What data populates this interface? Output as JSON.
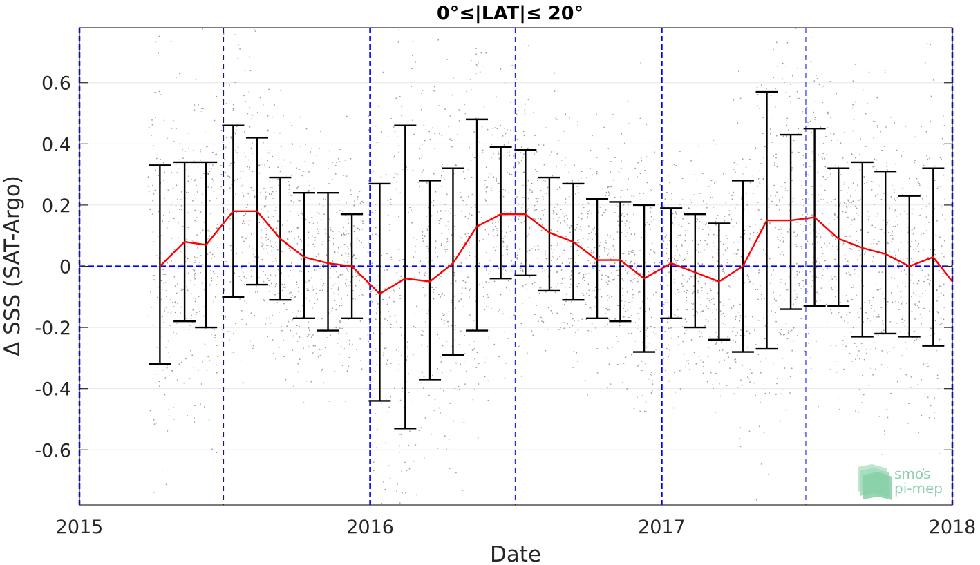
{
  "chart_data": {
    "type": "line",
    "title": "0°≤|LAT|≤ 20°",
    "xlabel": "Date",
    "ylabel": "Δ SSS (SAT-Argo)",
    "xlim": [
      "2015-01-01",
      "2018-01-01"
    ],
    "ylim": [
      -0.78,
      0.78
    ],
    "x_ticks": [
      "2015",
      "2016",
      "2017",
      "2018"
    ],
    "y_ticks": [
      -0.6,
      -0.4,
      -0.2,
      0,
      0.2,
      0.4,
      0.6
    ],
    "y_tick_labels": [
      "-0.6",
      "-0.4",
      "-0.2",
      "0",
      "0.2",
      "0.4",
      "0.6"
    ],
    "grid": true,
    "reference_line": {
      "y": 0,
      "color": "#0000ff",
      "style": "dashed"
    },
    "vertical_markers": [
      {
        "x": "2015-01-01",
        "color": "#0000ff",
        "weight": "heavy"
      },
      {
        "x": "2015-07-01",
        "color": "#000080",
        "weight": "light"
      },
      {
        "x": "2016-01-01",
        "color": "#0000ff",
        "weight": "heavy"
      },
      {
        "x": "2016-07-01",
        "color": "#0000ff",
        "weight": "light"
      },
      {
        "x": "2017-01-01",
        "color": "#0000ff",
        "weight": "heavy"
      },
      {
        "x": "2017-07-01",
        "color": "#0000ff",
        "weight": "light"
      },
      {
        "x": "2018-01-01",
        "color": "#0000ff",
        "weight": "heavy"
      }
    ],
    "series": [
      {
        "type": "errorbar",
        "color": "#ff0000",
        "errorbar_color": "#000000",
        "points": [
          {
            "x": "2015-04-12",
            "mean": 0.0,
            "lo": -0.32,
            "hi": 0.33
          },
          {
            "x": "2015-05-13",
            "mean": 0.08,
            "lo": -0.18,
            "hi": 0.34
          },
          {
            "x": "2015-06-09",
            "mean": 0.07,
            "lo": -0.2,
            "hi": 0.34
          },
          {
            "x": "2015-07-13",
            "mean": 0.18,
            "lo": -0.1,
            "hi": 0.46
          },
          {
            "x": "2015-08-12",
            "mean": 0.18,
            "lo": -0.06,
            "hi": 0.42
          },
          {
            "x": "2015-09-10",
            "mean": 0.09,
            "lo": -0.11,
            "hi": 0.29
          },
          {
            "x": "2015-10-10",
            "mean": 0.03,
            "lo": -0.17,
            "hi": 0.24
          },
          {
            "x": "2015-11-09",
            "mean": 0.01,
            "lo": -0.21,
            "hi": 0.24
          },
          {
            "x": "2015-12-09",
            "mean": 0.0,
            "lo": -0.17,
            "hi": 0.17
          },
          {
            "x": "2016-01-13",
            "mean": -0.09,
            "lo": -0.44,
            "hi": 0.27
          },
          {
            "x": "2016-02-14",
            "mean": -0.04,
            "lo": -0.53,
            "hi": 0.46
          },
          {
            "x": "2016-03-16",
            "mean": -0.05,
            "lo": -0.37,
            "hi": 0.28
          },
          {
            "x": "2016-04-14",
            "mean": 0.01,
            "lo": -0.29,
            "hi": 0.32
          },
          {
            "x": "2016-05-14",
            "mean": 0.13,
            "lo": -0.21,
            "hi": 0.48
          },
          {
            "x": "2016-06-13",
            "mean": 0.17,
            "lo": -0.04,
            "hi": 0.39
          },
          {
            "x": "2016-07-14",
            "mean": 0.17,
            "lo": -0.03,
            "hi": 0.38
          },
          {
            "x": "2016-08-13",
            "mean": 0.11,
            "lo": -0.08,
            "hi": 0.29
          },
          {
            "x": "2016-09-12",
            "mean": 0.08,
            "lo": -0.11,
            "hi": 0.27
          },
          {
            "x": "2016-10-12",
            "mean": 0.02,
            "lo": -0.17,
            "hi": 0.22
          },
          {
            "x": "2016-11-10",
            "mean": 0.02,
            "lo": -0.18,
            "hi": 0.21
          },
          {
            "x": "2016-12-10",
            "mean": -0.04,
            "lo": -0.28,
            "hi": 0.2
          },
          {
            "x": "2017-01-13",
            "mean": 0.01,
            "lo": -0.17,
            "hi": 0.19
          },
          {
            "x": "2017-02-12",
            "mean": -0.02,
            "lo": -0.2,
            "hi": 0.17
          },
          {
            "x": "2017-03-14",
            "mean": -0.05,
            "lo": -0.24,
            "hi": 0.14
          },
          {
            "x": "2017-04-13",
            "mean": 0.0,
            "lo": -0.28,
            "hi": 0.28
          },
          {
            "x": "2017-05-13",
            "mean": 0.15,
            "lo": -0.27,
            "hi": 0.57
          },
          {
            "x": "2017-06-12",
            "mean": 0.15,
            "lo": -0.14,
            "hi": 0.43
          },
          {
            "x": "2017-07-12",
            "mean": 0.16,
            "lo": -0.13,
            "hi": 0.45
          },
          {
            "x": "2017-08-11",
            "mean": 0.09,
            "lo": -0.13,
            "hi": 0.32
          },
          {
            "x": "2017-09-10",
            "mean": 0.06,
            "lo": -0.23,
            "hi": 0.34
          },
          {
            "x": "2017-10-09",
            "mean": 0.04,
            "lo": -0.22,
            "hi": 0.31
          },
          {
            "x": "2017-11-08",
            "mean": 0.0,
            "lo": -0.23,
            "hi": 0.23
          },
          {
            "x": "2017-12-08",
            "mean": 0.03,
            "lo": -0.26,
            "hi": 0.32
          },
          {
            "x": "2018-01-01",
            "mean": -0.05
          }
        ]
      }
    ],
    "scatter_color": "#808080",
    "logo": {
      "line1": "smos",
      "line2": "pi-mep"
    }
  }
}
